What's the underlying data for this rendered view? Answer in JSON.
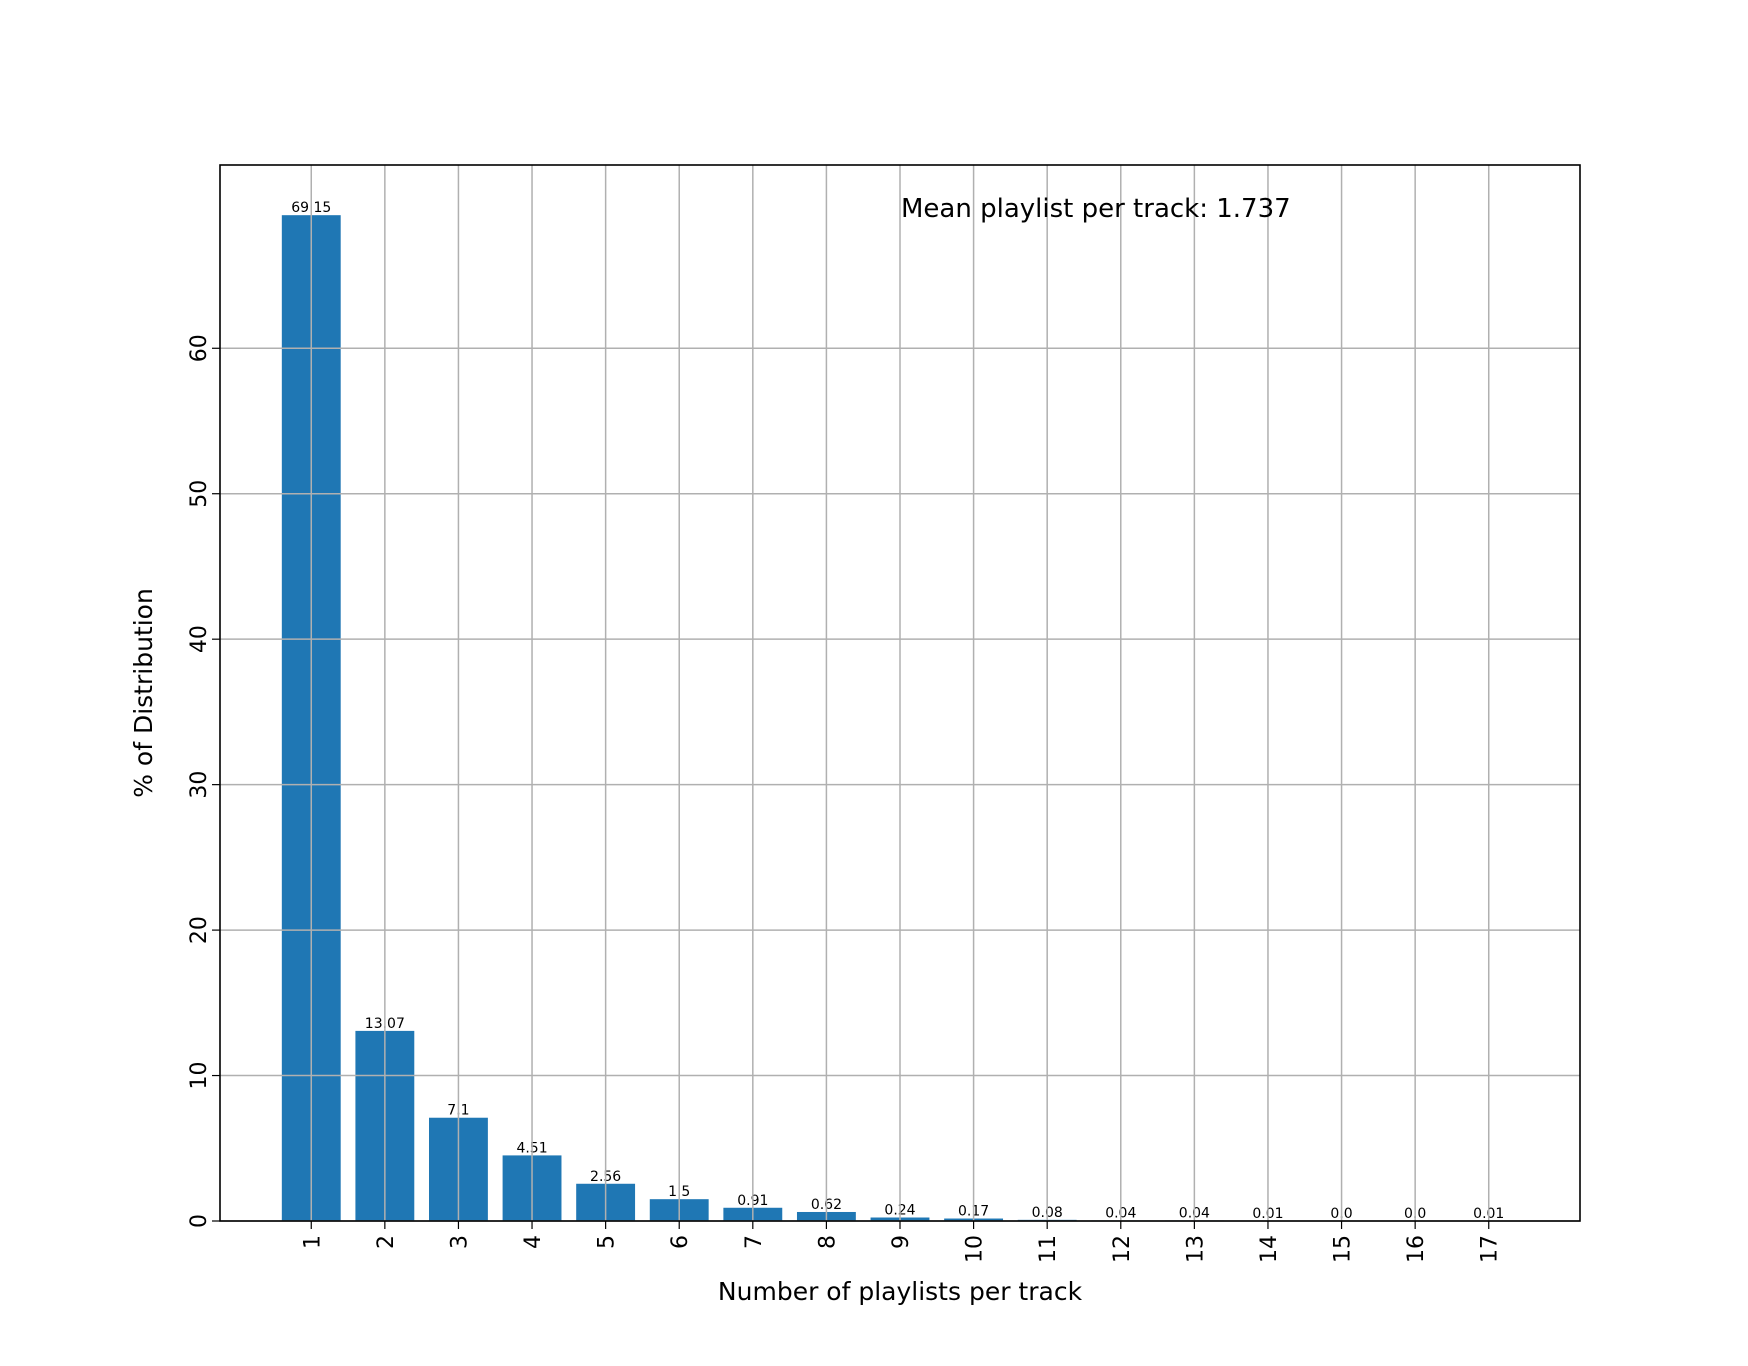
{
  "chart_data": {
    "type": "bar",
    "x": [
      1,
      2,
      3,
      4,
      5,
      6,
      7,
      8,
      9,
      10,
      11,
      12,
      13,
      14,
      15,
      16,
      17
    ],
    "values": [
      69.15,
      13.07,
      7.1,
      4.51,
      2.56,
      1.5,
      0.91,
      0.62,
      0.24,
      0.17,
      0.08,
      0.04,
      0.04,
      0.01,
      0.0,
      0.0,
      0.01
    ],
    "value_labels": [
      "69.15",
      "13.07",
      "7.1",
      "4.51",
      "2.56",
      "1.5",
      "0.91",
      "0.62",
      "0.24",
      "0.17",
      "0.08",
      "0.04",
      "0.04",
      "0.01",
      "0.0",
      "0.0",
      "0.01"
    ],
    "color": "#1f77b4",
    "xlabel": "Number of playlists per track",
    "ylabel": "% of Distribution",
    "annotation": "Mean playlist per track: 1.737",
    "xlim": [
      -0.24,
      18.24
    ],
    "xticks": [
      1,
      2,
      3,
      4,
      5,
      6,
      7,
      8,
      9,
      10,
      11,
      12,
      13,
      14,
      15,
      16,
      17
    ],
    "ylim": [
      0,
      72.6
    ],
    "yticks": [
      0,
      10,
      20,
      30,
      40,
      50,
      60
    ],
    "grid": true
  }
}
